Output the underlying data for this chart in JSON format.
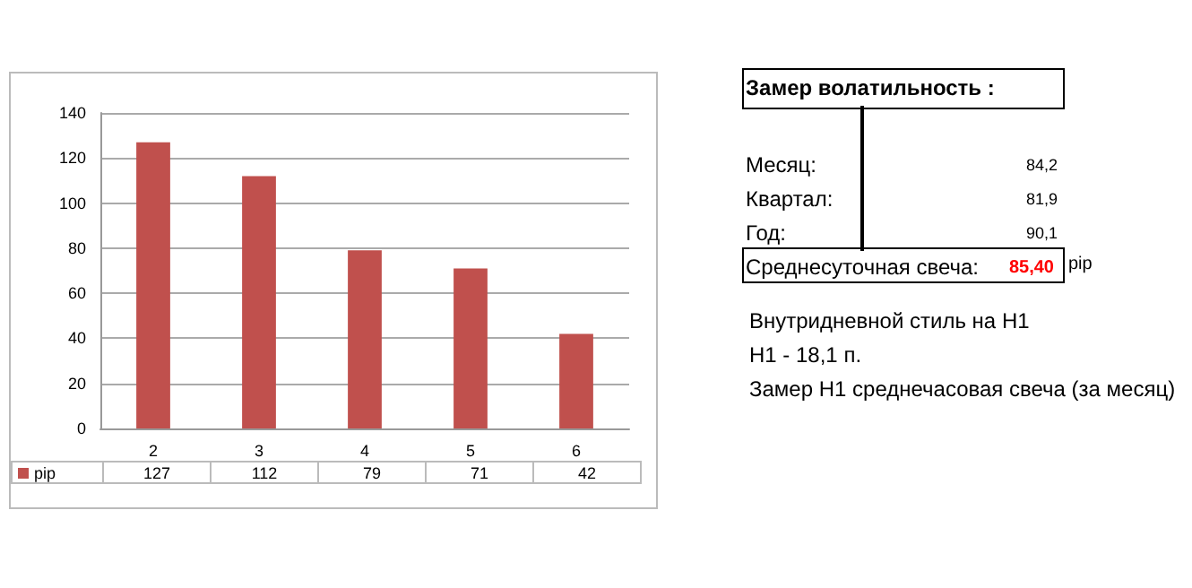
{
  "chart_data": {
    "type": "bar",
    "categories": [
      "2",
      "3",
      "4",
      "5",
      "6"
    ],
    "series": [
      {
        "name": "pip",
        "color": "#c0504d",
        "values": [
          127,
          112,
          79,
          71,
          42
        ]
      }
    ],
    "ylim": [
      0,
      140
    ],
    "yticks": [
      0,
      20,
      40,
      60,
      80,
      100,
      120,
      140
    ],
    "grid": "y",
    "legend": "bottom left",
    "data_labels": true,
    "annotations": [
      "Замер  волатильность  :",
      "Месяц:",
      "84,2",
      "Квартал:",
      "81,9",
      "Год:",
      "90,1",
      "Среднесуточная свеча:",
      "85,40",
      "pip",
      "Внутридневной стиль на H1",
      "H1 - 18,1 п.",
      "Замер H1 среднечасовая свеча (за месяц)"
    ]
  }
}
